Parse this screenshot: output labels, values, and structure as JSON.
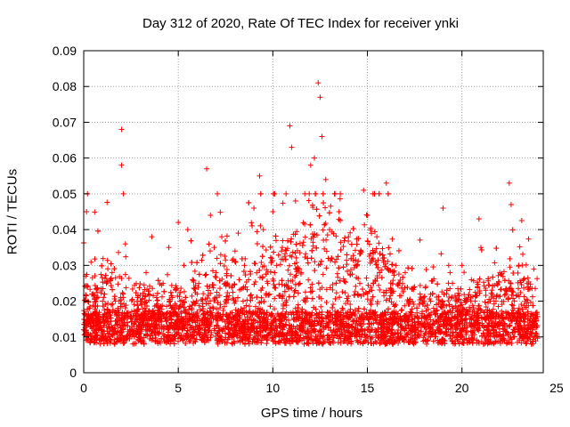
{
  "chart_data": {
    "type": "scatter",
    "title": "Day 312 of 2020, Rate Of TEC Index for receiver ynki",
    "xlabel": "GPS time / hours",
    "ylabel": "ROTI / TECUs",
    "xlim": [
      0,
      24
    ],
    "ylim": [
      0,
      0.09
    ],
    "xticks": [
      "0",
      "5",
      "10",
      "15",
      "20",
      "25"
    ],
    "yticks": [
      "0",
      "0.01",
      "0.02",
      "0.03",
      "0.04",
      "0.05",
      "0.06",
      "0.07",
      "0.08",
      "0.09"
    ],
    "grid": true,
    "marker": "+",
    "color": "#ff0000",
    "series": [
      {
        "name": "",
        "x": [
          0.0,
          0.1,
          0.15,
          0.2,
          0.3,
          0.5,
          0.8,
          1.0,
          1.2,
          1.5,
          1.8,
          2.0,
          2.0,
          2.1,
          2.2,
          2.3,
          2.5,
          3.0,
          3.3,
          3.6,
          4.0,
          4.2,
          4.5,
          5.0,
          5.3,
          5.5,
          6.0,
          6.5,
          6.7,
          6.9,
          7.0,
          7.3,
          7.5,
          8.0,
          8.5,
          9.0,
          9.3,
          9.5,
          9.8,
          10.0,
          10.2,
          10.5,
          10.9,
          11.0,
          11.2,
          11.5,
          12.0,
          12.2,
          12.4,
          12.5,
          12.6,
          12.8,
          13.0,
          13.5,
          14.0,
          14.5,
          14.8,
          15.0,
          15.3,
          15.5,
          16.0,
          16.5,
          17.0,
          17.5,
          18.0,
          18.5,
          19.0,
          19.3,
          19.5,
          20.0,
          20.5,
          20.9,
          21.0,
          21.5,
          22.0,
          22.5,
          22.6,
          23.0,
          23.5,
          23.8
        ],
        "y": [
          0.012,
          0.027,
          0.045,
          0.05,
          0.018,
          0.022,
          0.015,
          0.02,
          0.025,
          0.028,
          0.018,
          0.068,
          0.058,
          0.05,
          0.036,
          0.014,
          0.012,
          0.02,
          0.028,
          0.038,
          0.018,
          0.025,
          0.035,
          0.042,
          0.03,
          0.04,
          0.022,
          0.057,
          0.044,
          0.035,
          0.028,
          0.038,
          0.025,
          0.034,
          0.03,
          0.046,
          0.055,
          0.04,
          0.022,
          0.045,
          0.03,
          0.035,
          0.069,
          0.063,
          0.048,
          0.028,
          0.058,
          0.06,
          0.081,
          0.077,
          0.066,
          0.054,
          0.04,
          0.045,
          0.038,
          0.022,
          0.051,
          0.044,
          0.032,
          0.038,
          0.053,
          0.03,
          0.028,
          0.024,
          0.02,
          0.018,
          0.046,
          0.03,
          0.025,
          0.03,
          0.026,
          0.043,
          0.035,
          0.02,
          0.028,
          0.053,
          0.047,
          0.03,
          0.024,
          0.029
        ]
      }
    ]
  }
}
